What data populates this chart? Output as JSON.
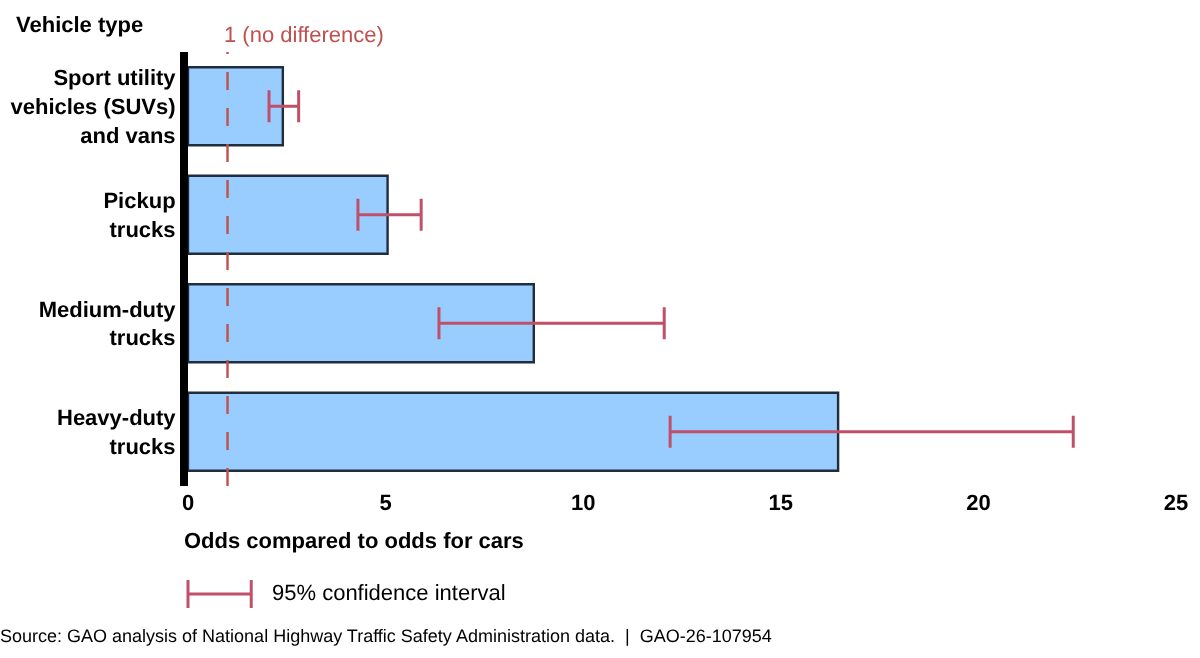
{
  "chart_data": {
    "type": "bar",
    "orientation": "horizontal",
    "ylabel": "Vehicle type",
    "xlabel": "Odds compared to odds for cars",
    "categories": [
      "Sport utility\nvehicles (SUVs)\nand vans",
      "Pickup\ntrucks",
      "Medium-duty\ntrucks",
      "Heavy-duty\ntrucks"
    ],
    "series": [
      {
        "color": "#99ccff",
        "values": [
          2.4,
          5.05,
          8.75,
          16.45
        ],
        "errors": [
          [
            2.05,
            2.8
          ],
          [
            4.3,
            5.9
          ],
          [
            6.35,
            12.05
          ],
          [
            12.2,
            22.4
          ]
        ]
      }
    ],
    "xlim": [
      0,
      25
    ],
    "xticks": [
      0,
      5,
      10,
      15,
      20,
      25
    ],
    "ref_lines": [
      {
        "axis": "x",
        "value": 1,
        "label": "1 (no difference)",
        "color": "#c0504d",
        "line_style": "dashed"
      }
    ],
    "annotations": [
      "95% confidence interval",
      "Source: GAO analysis of National Highway Traffic Safety Administration data.  |  GAO-26-107954"
    ]
  }
}
